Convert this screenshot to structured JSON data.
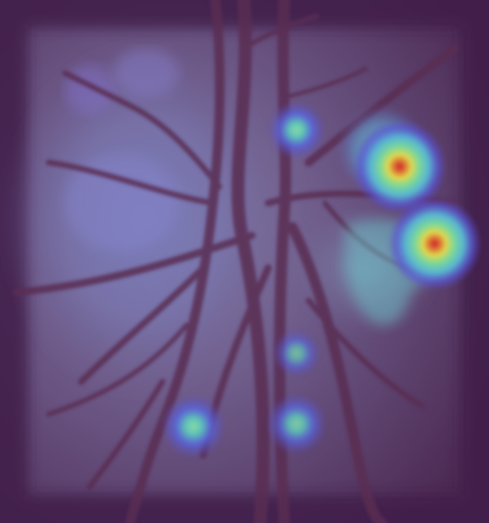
{
  "image": {
    "subject": "fundus-optic-disc-heatmap",
    "colors": {
      "background": "#5a3a60",
      "disc_glow": "#7a8fb0",
      "vessel": "#5b2f4f",
      "heat_blue": "#4a6cff",
      "heat_cyan": "#5de0c0",
      "heat_yellow": "#f0f050",
      "heat_red": "#e23a2a"
    },
    "hotspots": [
      {
        "name": "hotspot-upper-mid",
        "intensity": 0.45
      },
      {
        "name": "hotspot-upper-right",
        "intensity": 0.95
      },
      {
        "name": "hotspot-right",
        "intensity": 1.0
      },
      {
        "name": "hotspot-lower-mid",
        "intensity": 0.35
      },
      {
        "name": "hotspot-lower-left",
        "intensity": 0.5
      },
      {
        "name": "hotspot-lower-center",
        "intensity": 0.45
      }
    ]
  }
}
